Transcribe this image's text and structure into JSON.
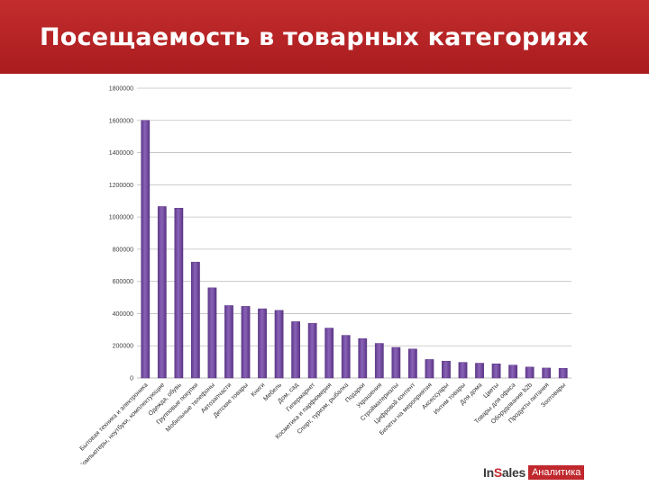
{
  "header": {
    "title": "Посещаемость в товарных категориях"
  },
  "logo": {
    "brand_prefix": "In",
    "brand_accent": "S",
    "brand_suffix": "ales",
    "badge": "Аналитика"
  },
  "colors": {
    "header": "#b52428",
    "bar": "#7b52a9",
    "bar_dark": "#5b3585",
    "grid": "#bfbfbf",
    "logo_red": "#c0282d"
  },
  "chart_data": {
    "type": "bar",
    "title": "",
    "xlabel": "",
    "ylabel": "",
    "ylim": [
      0,
      1800000
    ],
    "grid": true,
    "yticks": [
      "0",
      "200000",
      "400000",
      "600000",
      "800000",
      "1000000",
      "1200000",
      "1400000",
      "1600000",
      "1800000"
    ],
    "categories": [
      "Бытовая техника и электроника",
      "Компьютеры, ноутбуки, комплектующие",
      "Одежда, обувь",
      "Групповые покупки",
      "Мобильные телефоны",
      "Автозапчасти",
      "Детские товары",
      "Книги",
      "Мебель",
      "Дом, сад",
      "Гипермаркет",
      "Косметика и парфюмерия",
      "Спорт, туризм, рыбалка",
      "Подарки",
      "Украшения",
      "Стройматериалы",
      "Цифровой контент",
      "Билеты на мероприятия",
      "Аксессуары",
      "Интим товары",
      "Для дома",
      "Цветы",
      "Товары для офиса",
      "Оборудование b2b",
      "Продукты питания",
      "Зоотовары"
    ],
    "values": [
      1600000,
      1065000,
      1055000,
      720000,
      560000,
      450000,
      445000,
      430000,
      420000,
      350000,
      340000,
      310000,
      265000,
      245000,
      215000,
      190000,
      180000,
      115000,
      105000,
      97000,
      92000,
      88000,
      80000,
      68000,
      62000,
      60000
    ]
  }
}
